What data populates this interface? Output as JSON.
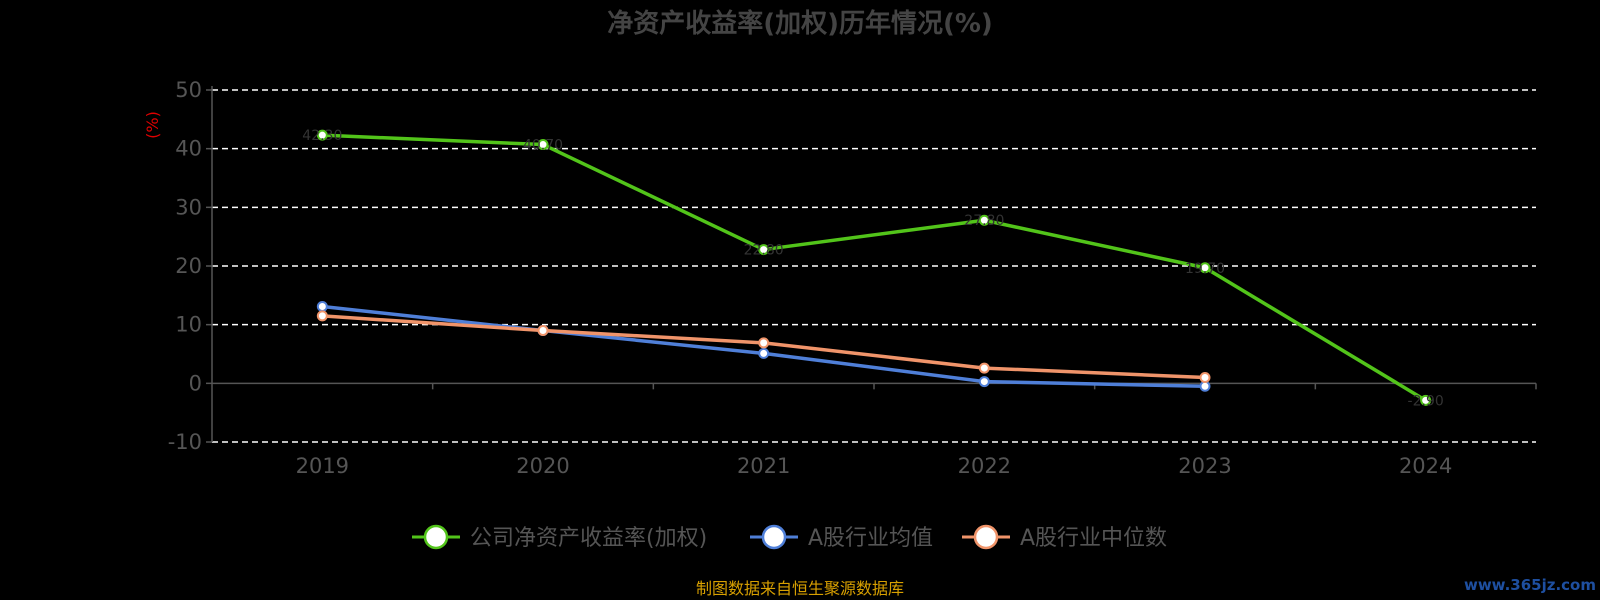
{
  "chart_data": {
    "type": "line",
    "title": "净资产收益率(加权)历年情况(%)",
    "ylabel": "(%)",
    "xlabel": "",
    "categories": [
      "2019",
      "2020",
      "2021",
      "2022",
      "2023",
      "2024"
    ],
    "yticks": [
      "50",
      "40",
      "30",
      "20",
      "10",
      "0",
      "-10"
    ],
    "ylim": [
      -10,
      50
    ],
    "grid": true,
    "legend_position": "bottom",
    "series": [
      {
        "name": "公司净资产收益率(加权)",
        "color": "#52c41a",
        "values": [
          42.3,
          40.7,
          22.8,
          27.8,
          19.7,
          -2.9
        ]
      },
      {
        "name": "A股行业均值",
        "color": "#4f7fd8",
        "values": [
          13.1,
          9.0,
          5.1,
          0.3,
          -0.5,
          null
        ]
      },
      {
        "name": "A股行业中位数",
        "color": "#f0946a",
        "values": [
          11.5,
          9.0,
          6.9,
          2.6,
          1.0,
          null
        ]
      }
    ]
  },
  "footer": {
    "source": "制图数据来自恒生聚源数据库",
    "watermark": "www.365jz.com"
  }
}
